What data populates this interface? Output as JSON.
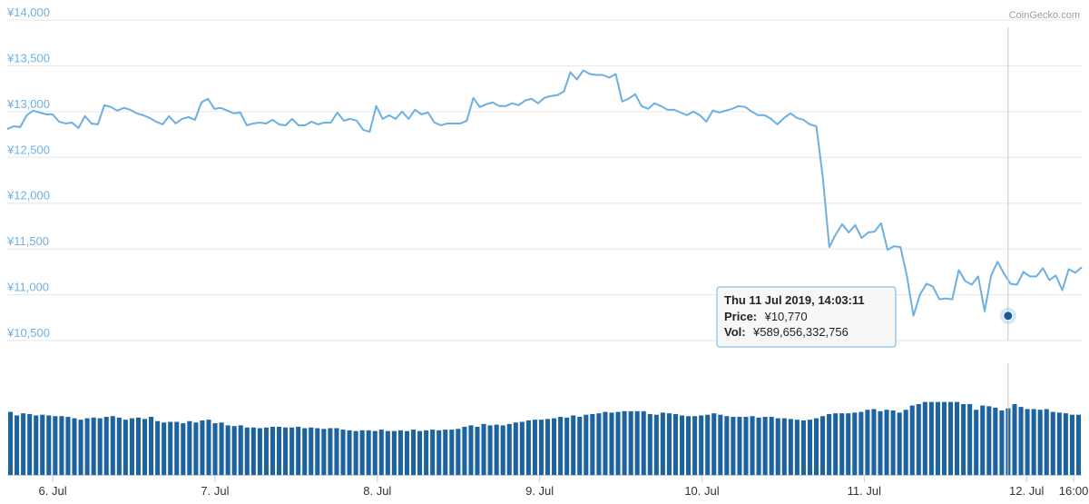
{
  "credit": "CoinGecko.com",
  "colors": {
    "price_line": "#6cb0e2",
    "volume_bar": "#1c63a0",
    "grid": "#e6e6e6",
    "y_tick_text": "#6db1e5",
    "crosshair": "#c8c8c8",
    "marker": "#1c5a92"
  },
  "tooltip": {
    "title": "Thu 11 Jul 2019, 14:03:11",
    "price_label": "Price:",
    "price_value": "¥10,770",
    "vol_label": "Vol:",
    "vol_value": "¥589,656,332,756"
  },
  "chart_data": {
    "type": "line",
    "title": "",
    "xlabel": "",
    "ylabel": "",
    "y_ticks": [
      "¥14,000",
      "¥13,500",
      "¥13,000",
      "¥12,500",
      "¥12,000",
      "¥11,500",
      "¥11,000",
      "¥10,500"
    ],
    "y_tick_values": [
      14000,
      13500,
      13000,
      12500,
      12000,
      11500,
      11000,
      10500
    ],
    "ylim": [
      10500,
      14000
    ],
    "x_ticks": [
      "6. Jul",
      "7. Jul",
      "8. Jul",
      "9. Jul",
      "10. Jul",
      "11. Jul",
      "12. Jul",
      "16:00"
    ],
    "x_tick_values": [
      5.7,
      6.7,
      7.7,
      8.7,
      9.7,
      10.7,
      11.7,
      11.99
    ],
    "x_start": 5.42,
    "x_end": 12.04,
    "grid": true,
    "legend": "none",
    "highlight": {
      "x": 11.586,
      "price": 10770
    },
    "series": [
      {
        "kind": "price",
        "values": [
          12810,
          12840,
          12830,
          12960,
          13010,
          12990,
          12970,
          12970,
          12890,
          12870,
          12880,
          12820,
          12950,
          12870,
          12860,
          13070,
          13050,
          13010,
          13040,
          13020,
          12980,
          12960,
          12930,
          12890,
          12860,
          12950,
          12870,
          12920,
          12940,
          12910,
          13100,
          13140,
          13030,
          13040,
          13010,
          12980,
          12990,
          12850,
          12870,
          12880,
          12870,
          12910,
          12860,
          12850,
          12920,
          12850,
          12850,
          12890,
          12860,
          12880,
          12880,
          12990,
          12900,
          12920,
          12900,
          12800,
          12780,
          13060,
          12920,
          12960,
          12920,
          13000,
          12920,
          13020,
          12970,
          12990,
          12880,
          12850,
          12870,
          12870,
          12870,
          12900,
          13150,
          13050,
          13080,
          13100,
          13060,
          13060,
          13090,
          13070,
          13120,
          13140,
          13090,
          13150,
          13170,
          13180,
          13220,
          13430,
          13350,
          13450,
          13410,
          13400,
          13400,
          13370,
          13410,
          13110,
          13140,
          13190,
          13060,
          13030,
          13090,
          13060,
          13020,
          13020,
          12990,
          12960,
          13000,
          12960,
          12890,
          13010,
          12990,
          13010,
          13030,
          13060,
          13050,
          13000,
          12960,
          12960,
          12920,
          12860,
          12930,
          12980,
          12930,
          12910,
          12860,
          12840,
          12280,
          11520,
          11660,
          11770,
          11680,
          11760,
          11620,
          11680,
          11690,
          11780,
          11490,
          11530,
          11520,
          11200,
          10770,
          11000,
          11120,
          11090,
          10950,
          10960,
          10950,
          11270,
          11150,
          11110,
          11200,
          10820,
          11210,
          11360,
          11230,
          11120,
          11110,
          11250,
          11200,
          11200,
          11290,
          11160,
          11210,
          11050,
          11280,
          11240,
          11300
        ]
      },
      {
        "kind": "volume",
        "values": [
          0.89,
          0.84,
          0.87,
          0.86,
          0.84,
          0.85,
          0.84,
          0.83,
          0.83,
          0.82,
          0.8,
          0.78,
          0.8,
          0.81,
          0.8,
          0.82,
          0.83,
          0.81,
          0.78,
          0.8,
          0.81,
          0.79,
          0.82,
          0.76,
          0.74,
          0.75,
          0.75,
          0.73,
          0.76,
          0.74,
          0.77,
          0.78,
          0.73,
          0.74,
          0.7,
          0.69,
          0.7,
          0.67,
          0.67,
          0.66,
          0.67,
          0.68,
          0.68,
          0.67,
          0.67,
          0.68,
          0.66,
          0.67,
          0.66,
          0.65,
          0.66,
          0.66,
          0.64,
          0.63,
          0.62,
          0.63,
          0.63,
          0.62,
          0.64,
          0.62,
          0.62,
          0.63,
          0.62,
          0.64,
          0.62,
          0.63,
          0.64,
          0.63,
          0.64,
          0.64,
          0.65,
          0.68,
          0.7,
          0.68,
          0.72,
          0.7,
          0.71,
          0.7,
          0.72,
          0.74,
          0.75,
          0.77,
          0.78,
          0.78,
          0.79,
          0.8,
          0.82,
          0.81,
          0.84,
          0.82,
          0.85,
          0.86,
          0.87,
          0.89,
          0.88,
          0.89,
          0.9,
          0.9,
          0.9,
          0.9,
          0.86,
          0.85,
          0.88,
          0.87,
          0.86,
          0.84,
          0.83,
          0.83,
          0.84,
          0.85,
          0.87,
          0.85,
          0.83,
          0.82,
          0.82,
          0.82,
          0.83,
          0.81,
          0.82,
          0.82,
          0.8,
          0.8,
          0.79,
          0.78,
          0.77,
          0.78,
          0.8,
          0.83,
          0.86,
          0.87,
          0.87,
          0.87,
          0.88,
          0.89,
          0.92,
          0.93,
          0.9,
          0.92,
          0.91,
          0.88,
          0.92,
          0.98,
          1.0,
          1.03,
          1.03,
          1.03,
          1.03,
          1.03,
          1.03,
          1.0,
          1.0,
          0.92,
          0.98,
          0.97,
          0.95,
          0.91,
          0.94,
          1.0,
          0.96,
          0.93,
          0.93,
          0.92,
          0.93,
          0.89,
          0.88,
          0.87,
          0.85,
          0.85
        ]
      }
    ]
  }
}
